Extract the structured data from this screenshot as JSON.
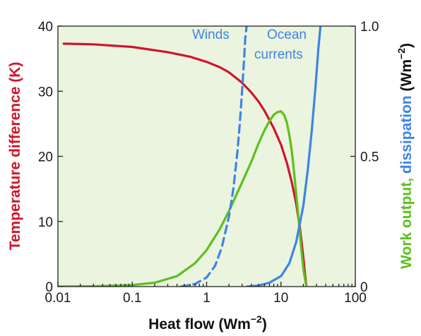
{
  "colors": {
    "plot_background": "#eaf4df",
    "temperature": "#d2142a",
    "work": "#5cbf1e",
    "dissipation": "#3f83e6",
    "axis": "#222222"
  },
  "chart_data": {
    "type": "line",
    "xscale": "log",
    "xlim": [
      0.01,
      100
    ],
    "ylim_left": [
      0,
      40
    ],
    "ylim_right": [
      0,
      1.0
    ],
    "grid": false,
    "x_ticks": [
      {
        "value": 0.01,
        "label": "0.01"
      },
      {
        "value": 0.1,
        "label": "0.1"
      },
      {
        "value": 1,
        "label": "1"
      },
      {
        "value": 10,
        "label": "10"
      },
      {
        "value": 100,
        "label": "100"
      }
    ],
    "y_left_ticks": [
      {
        "value": 0,
        "label": "0"
      },
      {
        "value": 10,
        "label": "10"
      },
      {
        "value": 20,
        "label": "20"
      },
      {
        "value": 30,
        "label": "30"
      },
      {
        "value": 40,
        "label": "40"
      }
    ],
    "y_right_ticks": [
      {
        "value": 0,
        "label": "0"
      },
      {
        "value": 0.5,
        "label": "0.5"
      },
      {
        "value": 1.0,
        "label": "1.0"
      }
    ],
    "xlabel": {
      "text": "Heat flow (Wm",
      "sup": "−2",
      "tail": ")"
    },
    "ylabel_left": "Temperature difference (K)",
    "ylabel_right": {
      "part1": "Work output, ",
      "part2": "dissipation ",
      "part3": "(Wm",
      "sup": "−2",
      "tail": ")"
    },
    "annotations": {
      "winds": "Winds",
      "ocean_line1": "Ocean",
      "ocean_line2": "currents"
    },
    "series": [
      {
        "axis": "left",
        "color_key": "temperature",
        "style": "solid",
        "x": [
          0.012,
          0.03,
          0.1,
          0.3,
          0.6,
          1,
          1.5,
          2,
          3,
          4,
          5,
          6,
          7,
          8,
          10,
          12,
          14,
          16,
          18,
          20,
          21,
          22
        ],
        "y": [
          37.3,
          37.2,
          36.8,
          36.0,
          35.3,
          34.5,
          33.7,
          32.9,
          31.3,
          29.8,
          28.4,
          27.0,
          25.6,
          24.3,
          21.8,
          19.0,
          16.0,
          12.8,
          9.0,
          4.5,
          2.0,
          0
        ]
      },
      {
        "axis": "right",
        "color_key": "work",
        "style": "solid",
        "x": [
          0.01,
          0.03,
          0.1,
          0.2,
          0.4,
          0.7,
          1,
          1.5,
          2,
          3,
          4,
          5,
          6,
          7,
          8,
          9,
          10,
          11,
          12,
          13,
          14,
          15,
          16,
          17,
          18,
          19,
          20,
          21,
          22
        ],
        "y": [
          0,
          0.001,
          0.006,
          0.015,
          0.04,
          0.09,
          0.14,
          0.22,
          0.29,
          0.4,
          0.48,
          0.55,
          0.6,
          0.635,
          0.66,
          0.67,
          0.673,
          0.66,
          0.63,
          0.58,
          0.52,
          0.44,
          0.36,
          0.28,
          0.2,
          0.13,
          0.07,
          0.03,
          0
        ]
      },
      {
        "axis": "right",
        "color_key": "dissipation",
        "style": "dashed",
        "x": [
          0.45,
          0.7,
          1,
          1.3,
          1.6,
          2,
          2.3,
          2.6,
          2.8,
          3.0,
          3.2,
          3.3,
          3.45
        ],
        "y": [
          0,
          0.01,
          0.035,
          0.08,
          0.15,
          0.27,
          0.38,
          0.52,
          0.63,
          0.75,
          0.88,
          0.95,
          1.0
        ]
      },
      {
        "axis": "right",
        "color_key": "dissipation",
        "style": "solid",
        "x": [
          3.5,
          5,
          7,
          10,
          13,
          16,
          20,
          23,
          26,
          29,
          32,
          34
        ],
        "y": [
          0,
          0.004,
          0.015,
          0.04,
          0.09,
          0.17,
          0.31,
          0.45,
          0.6,
          0.76,
          0.92,
          1.0
        ]
      }
    ]
  }
}
